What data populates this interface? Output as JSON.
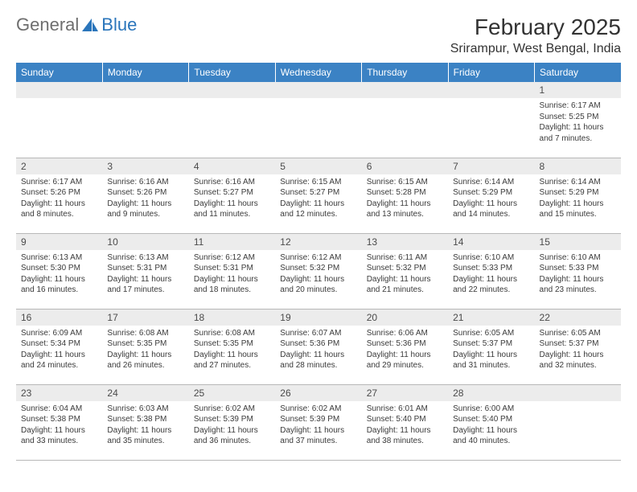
{
  "logo": {
    "text1": "General",
    "text2": "Blue"
  },
  "title": "February 2025",
  "location": "Srirampur, West Bengal, India",
  "colors": {
    "header_bg": "#3b82c4",
    "header_text": "#ffffff",
    "daynum_bg": "#ececec",
    "daynum_text": "#4a4a4a",
    "body_text": "#3a3a3a",
    "logo_gray": "#6e6e6e",
    "logo_blue": "#2a75bb",
    "border": "#b8b8b8"
  },
  "weekdays": [
    "Sunday",
    "Monday",
    "Tuesday",
    "Wednesday",
    "Thursday",
    "Friday",
    "Saturday"
  ],
  "first_weekday_index": 6,
  "days": [
    {
      "n": 1,
      "sunrise": "6:17 AM",
      "sunset": "5:25 PM",
      "daylight": "11 hours and 7 minutes."
    },
    {
      "n": 2,
      "sunrise": "6:17 AM",
      "sunset": "5:26 PM",
      "daylight": "11 hours and 8 minutes."
    },
    {
      "n": 3,
      "sunrise": "6:16 AM",
      "sunset": "5:26 PM",
      "daylight": "11 hours and 9 minutes."
    },
    {
      "n": 4,
      "sunrise": "6:16 AM",
      "sunset": "5:27 PM",
      "daylight": "11 hours and 11 minutes."
    },
    {
      "n": 5,
      "sunrise": "6:15 AM",
      "sunset": "5:27 PM",
      "daylight": "11 hours and 12 minutes."
    },
    {
      "n": 6,
      "sunrise": "6:15 AM",
      "sunset": "5:28 PM",
      "daylight": "11 hours and 13 minutes."
    },
    {
      "n": 7,
      "sunrise": "6:14 AM",
      "sunset": "5:29 PM",
      "daylight": "11 hours and 14 minutes."
    },
    {
      "n": 8,
      "sunrise": "6:14 AM",
      "sunset": "5:29 PM",
      "daylight": "11 hours and 15 minutes."
    },
    {
      "n": 9,
      "sunrise": "6:13 AM",
      "sunset": "5:30 PM",
      "daylight": "11 hours and 16 minutes."
    },
    {
      "n": 10,
      "sunrise": "6:13 AM",
      "sunset": "5:31 PM",
      "daylight": "11 hours and 17 minutes."
    },
    {
      "n": 11,
      "sunrise": "6:12 AM",
      "sunset": "5:31 PM",
      "daylight": "11 hours and 18 minutes."
    },
    {
      "n": 12,
      "sunrise": "6:12 AM",
      "sunset": "5:32 PM",
      "daylight": "11 hours and 20 minutes."
    },
    {
      "n": 13,
      "sunrise": "6:11 AM",
      "sunset": "5:32 PM",
      "daylight": "11 hours and 21 minutes."
    },
    {
      "n": 14,
      "sunrise": "6:10 AM",
      "sunset": "5:33 PM",
      "daylight": "11 hours and 22 minutes."
    },
    {
      "n": 15,
      "sunrise": "6:10 AM",
      "sunset": "5:33 PM",
      "daylight": "11 hours and 23 minutes."
    },
    {
      "n": 16,
      "sunrise": "6:09 AM",
      "sunset": "5:34 PM",
      "daylight": "11 hours and 24 minutes."
    },
    {
      "n": 17,
      "sunrise": "6:08 AM",
      "sunset": "5:35 PM",
      "daylight": "11 hours and 26 minutes."
    },
    {
      "n": 18,
      "sunrise": "6:08 AM",
      "sunset": "5:35 PM",
      "daylight": "11 hours and 27 minutes."
    },
    {
      "n": 19,
      "sunrise": "6:07 AM",
      "sunset": "5:36 PM",
      "daylight": "11 hours and 28 minutes."
    },
    {
      "n": 20,
      "sunrise": "6:06 AM",
      "sunset": "5:36 PM",
      "daylight": "11 hours and 29 minutes."
    },
    {
      "n": 21,
      "sunrise": "6:05 AM",
      "sunset": "5:37 PM",
      "daylight": "11 hours and 31 minutes."
    },
    {
      "n": 22,
      "sunrise": "6:05 AM",
      "sunset": "5:37 PM",
      "daylight": "11 hours and 32 minutes."
    },
    {
      "n": 23,
      "sunrise": "6:04 AM",
      "sunset": "5:38 PM",
      "daylight": "11 hours and 33 minutes."
    },
    {
      "n": 24,
      "sunrise": "6:03 AM",
      "sunset": "5:38 PM",
      "daylight": "11 hours and 35 minutes."
    },
    {
      "n": 25,
      "sunrise": "6:02 AM",
      "sunset": "5:39 PM",
      "daylight": "11 hours and 36 minutes."
    },
    {
      "n": 26,
      "sunrise": "6:02 AM",
      "sunset": "5:39 PM",
      "daylight": "11 hours and 37 minutes."
    },
    {
      "n": 27,
      "sunrise": "6:01 AM",
      "sunset": "5:40 PM",
      "daylight": "11 hours and 38 minutes."
    },
    {
      "n": 28,
      "sunrise": "6:00 AM",
      "sunset": "5:40 PM",
      "daylight": "11 hours and 40 minutes."
    }
  ],
  "labels": {
    "sunrise": "Sunrise:",
    "sunset": "Sunset:",
    "daylight": "Daylight:"
  }
}
